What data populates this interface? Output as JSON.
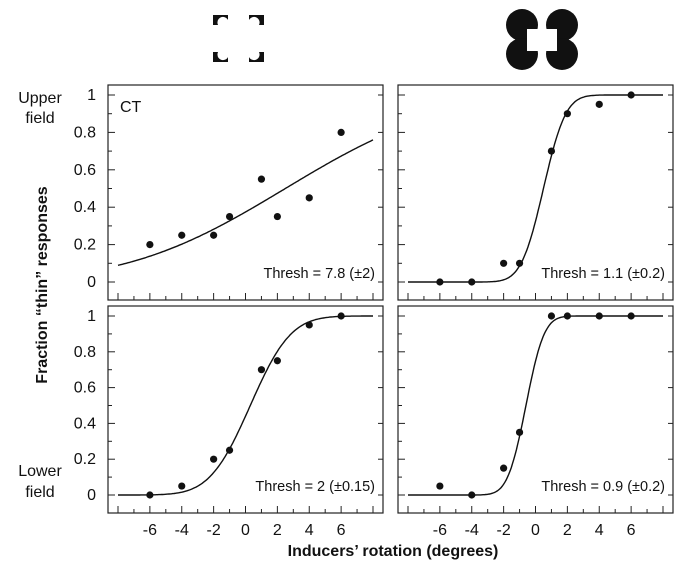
{
  "figure": {
    "ylabel": "Fraction “thin” responses",
    "xlabel": "Inducers’ rotation (degrees)",
    "row_labels": {
      "upper": [
        "Upper",
        "field"
      ],
      "lower": [
        "Lower",
        "field"
      ]
    },
    "column_icons": [
      "illusory-square-inducers-icon",
      "real-square-inducers-icon"
    ]
  },
  "chart_data": [
    {
      "type": "scatter",
      "panel": "upper-left",
      "tag": "CT",
      "annotation": "Thresh = 7.8 (±2)",
      "x": [
        -6,
        -4,
        -2,
        -1,
        1,
        2,
        4,
        6
      ],
      "y": [
        0.2,
        0.25,
        0.25,
        0.35,
        0.55,
        0.35,
        0.45,
        0.8
      ],
      "fit": {
        "type": "cumulative-normal",
        "mu": 2.5,
        "sigma": 7.8
      },
      "xlim": [
        -8,
        8
      ],
      "ylim": [
        0,
        1
      ],
      "xticks": [
        "-6",
        "-4",
        "-2",
        "0",
        "2",
        "4",
        "6"
      ],
      "yticks": [
        "0",
        "0.2",
        "0.4",
        "0.6",
        "0.8",
        "1"
      ],
      "show_xticks": false
    },
    {
      "type": "scatter",
      "panel": "upper-right",
      "tag": "",
      "annotation": "Thresh = 1.1 (±0.2)",
      "x": [
        -6,
        -4,
        -2,
        -1,
        1,
        2,
        4,
        6
      ],
      "y": [
        0.0,
        0.0,
        0.1,
        0.1,
        0.7,
        0.9,
        0.95,
        1.0
      ],
      "fit": {
        "type": "cumulative-normal",
        "mu": 0.5,
        "sigma": 1.1
      },
      "xlim": [
        -8,
        8
      ],
      "ylim": [
        0,
        1
      ],
      "xticks": [
        "-6",
        "-4",
        "-2",
        "0",
        "2",
        "4",
        "6"
      ],
      "yticks": [
        "0",
        "0.2",
        "0.4",
        "0.6",
        "0.8",
        "1"
      ],
      "show_xticks": false
    },
    {
      "type": "scatter",
      "panel": "lower-left",
      "tag": "",
      "annotation": "Thresh = 2 (±0.15)",
      "x": [
        -6,
        -4,
        -2,
        -1,
        1,
        2,
        4,
        6
      ],
      "y": [
        0.0,
        0.05,
        0.2,
        0.25,
        0.7,
        0.75,
        0.95,
        1.0
      ],
      "fit": {
        "type": "cumulative-normal",
        "mu": 0.3,
        "sigma": 2.0
      },
      "xlim": [
        -8,
        8
      ],
      "ylim": [
        0,
        1
      ],
      "xticks": [
        "-6",
        "-4",
        "-2",
        "0",
        "2",
        "4",
        "6"
      ],
      "yticks": [
        "0",
        "0.2",
        "0.4",
        "0.6",
        "0.8",
        "1"
      ],
      "show_xticks": true
    },
    {
      "type": "scatter",
      "panel": "lower-right",
      "tag": "",
      "annotation": "Thresh = 0.9 (±0.2)",
      "x": [
        -6,
        -4,
        -2,
        -1,
        1,
        2,
        4,
        6
      ],
      "y": [
        0.05,
        0.0,
        0.15,
        0.35,
        1.0,
        1.0,
        1.0,
        1.0
      ],
      "fit": {
        "type": "cumulative-normal",
        "mu": -0.6,
        "sigma": 0.9
      },
      "xlim": [
        -8,
        8
      ],
      "ylim": [
        0,
        1
      ],
      "xticks": [
        "-6",
        "-4",
        "-2",
        "0",
        "2",
        "4",
        "6"
      ],
      "yticks": [
        "0",
        "0.2",
        "0.4",
        "0.6",
        "0.8",
        "1"
      ],
      "show_xticks": true
    }
  ]
}
